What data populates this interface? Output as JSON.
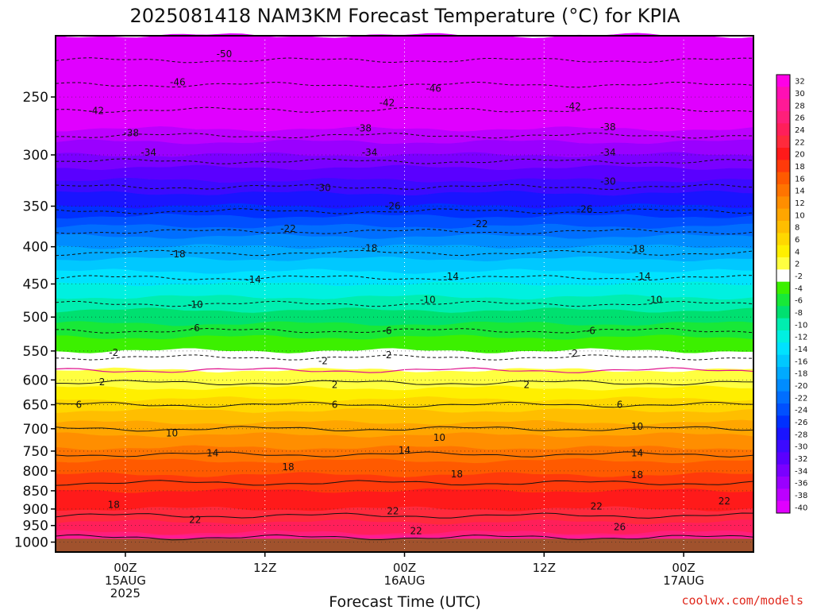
{
  "chart_data": {
    "type": "heatmap",
    "title": "2025081418 NAM3KM Forecast Temperature (°C) for KPIA",
    "xlabel": "Forecast Time (UTC)",
    "ylabel": "",
    "x_ticks": [
      {
        "label": "00Z",
        "sub": [
          "15AUG",
          "2025"
        ],
        "hour": 6
      },
      {
        "label": "12Z",
        "sub": [],
        "hour": 18
      },
      {
        "label": "00Z",
        "sub": [
          "16AUG"
        ],
        "hour": 30
      },
      {
        "label": "12Z",
        "sub": [],
        "hour": 42
      },
      {
        "label": "00Z",
        "sub": [
          "17AUG"
        ],
        "hour": 54
      }
    ],
    "x_range_hours": [
      0,
      60
    ],
    "y_ticks": [
      250,
      300,
      350,
      400,
      450,
      500,
      550,
      600,
      650,
      700,
      750,
      800,
      850,
      900,
      950,
      1000
    ],
    "y_axis_levels": [
      {
        "p": 200,
        "frac": 0.0
      },
      {
        "p": 250,
        "frac": 0.1186
      },
      {
        "p": 300,
        "frac": 0.2308
      },
      {
        "p": 350,
        "frac": 0.3301
      },
      {
        "p": 400,
        "frac": 0.4087
      },
      {
        "p": 450,
        "frac": 0.4808
      },
      {
        "p": 500,
        "frac": 0.5449
      },
      {
        "p": 550,
        "frac": 0.6106
      },
      {
        "p": 600,
        "frac": 0.6667
      },
      {
        "p": 650,
        "frac": 0.7147
      },
      {
        "p": 700,
        "frac": 0.7612
      },
      {
        "p": 750,
        "frac": 0.8045
      },
      {
        "p": 800,
        "frac": 0.8429
      },
      {
        "p": 850,
        "frac": 0.8814
      },
      {
        "p": 900,
        "frac": 0.9167
      },
      {
        "p": 950,
        "frac": 0.9487
      },
      {
        "p": 1000,
        "frac": 0.9808
      },
      {
        "p": 1015,
        "frac": 1.0
      }
    ],
    "temperature_profile": [
      {
        "p": 200,
        "t": -54
      },
      {
        "p": 250,
        "t": -44
      },
      {
        "p": 300,
        "t": -35
      },
      {
        "p": 350,
        "t": -27
      },
      {
        "p": 400,
        "t": -19
      },
      {
        "p": 450,
        "t": -13
      },
      {
        "p": 500,
        "t": -8
      },
      {
        "p": 550,
        "t": -3
      },
      {
        "p": 600,
        "t": 1.5
      },
      {
        "p": 650,
        "t": 6
      },
      {
        "p": 700,
        "t": 10
      },
      {
        "p": 750,
        "t": 13.5
      },
      {
        "p": 800,
        "t": 16.5
      },
      {
        "p": 850,
        "t": 19
      },
      {
        "p": 900,
        "t": 21
      },
      {
        "p": 950,
        "t": 23.5
      },
      {
        "p": 1000,
        "t": 27
      }
    ],
    "ground_below_hpa": 990,
    "colorbar": {
      "levels": [
        32,
        30,
        28,
        26,
        24,
        22,
        20,
        18,
        16,
        14,
        12,
        10,
        8,
        6,
        4,
        2,
        -2,
        -4,
        -6,
        -8,
        -10,
        -12,
        -14,
        -16,
        -18,
        -20,
        -22,
        -24,
        -26,
        -28,
        -30,
        -32,
        -34,
        -36,
        -38,
        -40
      ],
      "colors": [
        "#ff00e6",
        "#ff0fb4",
        "#ff1a96",
        "#ff1f7a",
        "#ff1f5a",
        "#ff2a3c",
        "#ff1a1a",
        "#ff3a0a",
        "#ff5a00",
        "#ff7400",
        "#ff8e00",
        "#ffa600",
        "#ffbe00",
        "#ffd700",
        "#ffef00",
        "#ffff40",
        "#ffffff",
        "#3cf000",
        "#18e838",
        "#00e070",
        "#00eeb0",
        "#00f0e0",
        "#00e2ff",
        "#00c8ff",
        "#00aaff",
        "#008cff",
        "#006eff",
        "#0050ff",
        "#0030ff",
        "#1a14ff",
        "#3c0aff",
        "#5a00ff",
        "#7a00ff",
        "#9a00ff",
        "#bc00ff",
        "#e000ff"
      ]
    },
    "contour_labels": [
      {
        "v": "-50",
        "h": 14.5,
        "p": 215
      },
      {
        "v": "-46",
        "h": 10.5,
        "p": 238
      },
      {
        "v": "-46",
        "h": 32.5,
        "p": 243
      },
      {
        "v": "-42",
        "h": 3.5,
        "p": 262
      },
      {
        "v": "-42",
        "h": 28.5,
        "p": 255
      },
      {
        "v": "-42",
        "h": 44.5,
        "p": 258
      },
      {
        "v": "-38",
        "h": 6.5,
        "p": 281
      },
      {
        "v": "-38",
        "h": 26.5,
        "p": 277
      },
      {
        "v": "-38",
        "h": 47.5,
        "p": 276
      },
      {
        "v": "-34",
        "h": 8.0,
        "p": 298
      },
      {
        "v": "-34",
        "h": 27.0,
        "p": 298
      },
      {
        "v": "-34",
        "h": 47.5,
        "p": 298
      },
      {
        "v": "-30",
        "h": 23.0,
        "p": 332
      },
      {
        "v": "-30",
        "h": 47.5,
        "p": 326
      },
      {
        "v": "-26",
        "h": 29.0,
        "p": 350
      },
      {
        "v": "-26",
        "h": 45.5,
        "p": 354
      },
      {
        "v": "-22",
        "h": 20.0,
        "p": 378
      },
      {
        "v": "-22",
        "h": 36.5,
        "p": 372
      },
      {
        "v": "-18",
        "h": 10.5,
        "p": 410
      },
      {
        "v": "-18",
        "h": 27.0,
        "p": 402
      },
      {
        "v": "-18",
        "h": 50.0,
        "p": 403
      },
      {
        "v": "-14",
        "h": 17.0,
        "p": 444
      },
      {
        "v": "-14",
        "h": 34.0,
        "p": 440
      },
      {
        "v": "-14",
        "h": 50.5,
        "p": 440
      },
      {
        "v": "-10",
        "h": 12.0,
        "p": 481
      },
      {
        "v": "-10",
        "h": 32.0,
        "p": 474
      },
      {
        "v": "-10",
        "h": 51.5,
        "p": 474
      },
      {
        "v": "-6",
        "h": 12.0,
        "p": 516
      },
      {
        "v": "-6",
        "h": 28.5,
        "p": 520
      },
      {
        "v": "-6",
        "h": 46.0,
        "p": 520
      },
      {
        "v": "-2",
        "h": 5.0,
        "p": 553
      },
      {
        "v": "-2",
        "h": 23.0,
        "p": 567
      },
      {
        "v": "-2",
        "h": 28.5,
        "p": 557
      },
      {
        "v": "-2",
        "h": 44.5,
        "p": 554
      },
      {
        "v": "2",
        "h": 4.0,
        "p": 604
      },
      {
        "v": "2",
        "h": 24.0,
        "p": 610
      },
      {
        "v": "2",
        "h": 40.5,
        "p": 610
      },
      {
        "v": "6",
        "h": 2.0,
        "p": 650
      },
      {
        "v": "6",
        "h": 24.0,
        "p": 650
      },
      {
        "v": "6",
        "h": 48.5,
        "p": 650
      },
      {
        "v": "10",
        "h": 10.0,
        "p": 710
      },
      {
        "v": "10",
        "h": 33.0,
        "p": 720
      },
      {
        "v": "10",
        "h": 50.0,
        "p": 695
      },
      {
        "v": "14",
        "h": 13.5,
        "p": 755
      },
      {
        "v": "14",
        "h": 30.0,
        "p": 748
      },
      {
        "v": "14",
        "h": 50.0,
        "p": 755
      },
      {
        "v": "18",
        "h": 20.0,
        "p": 790
      },
      {
        "v": "18",
        "h": 34.5,
        "p": 808
      },
      {
        "v": "18",
        "h": 50.0,
        "p": 810
      },
      {
        "v": "18",
        "h": 5.0,
        "p": 888
      },
      {
        "v": "22",
        "h": 12.0,
        "p": 933
      },
      {
        "v": "22",
        "h": 29.0,
        "p": 906
      },
      {
        "v": "22",
        "h": 46.5,
        "p": 893
      },
      {
        "v": "22",
        "h": 57.5,
        "p": 878
      },
      {
        "v": "22",
        "h": 31.0,
        "p": 967
      },
      {
        "v": "26",
        "h": 48.5,
        "p": 955
      }
    ]
  },
  "credit": "coolwx.com/models"
}
